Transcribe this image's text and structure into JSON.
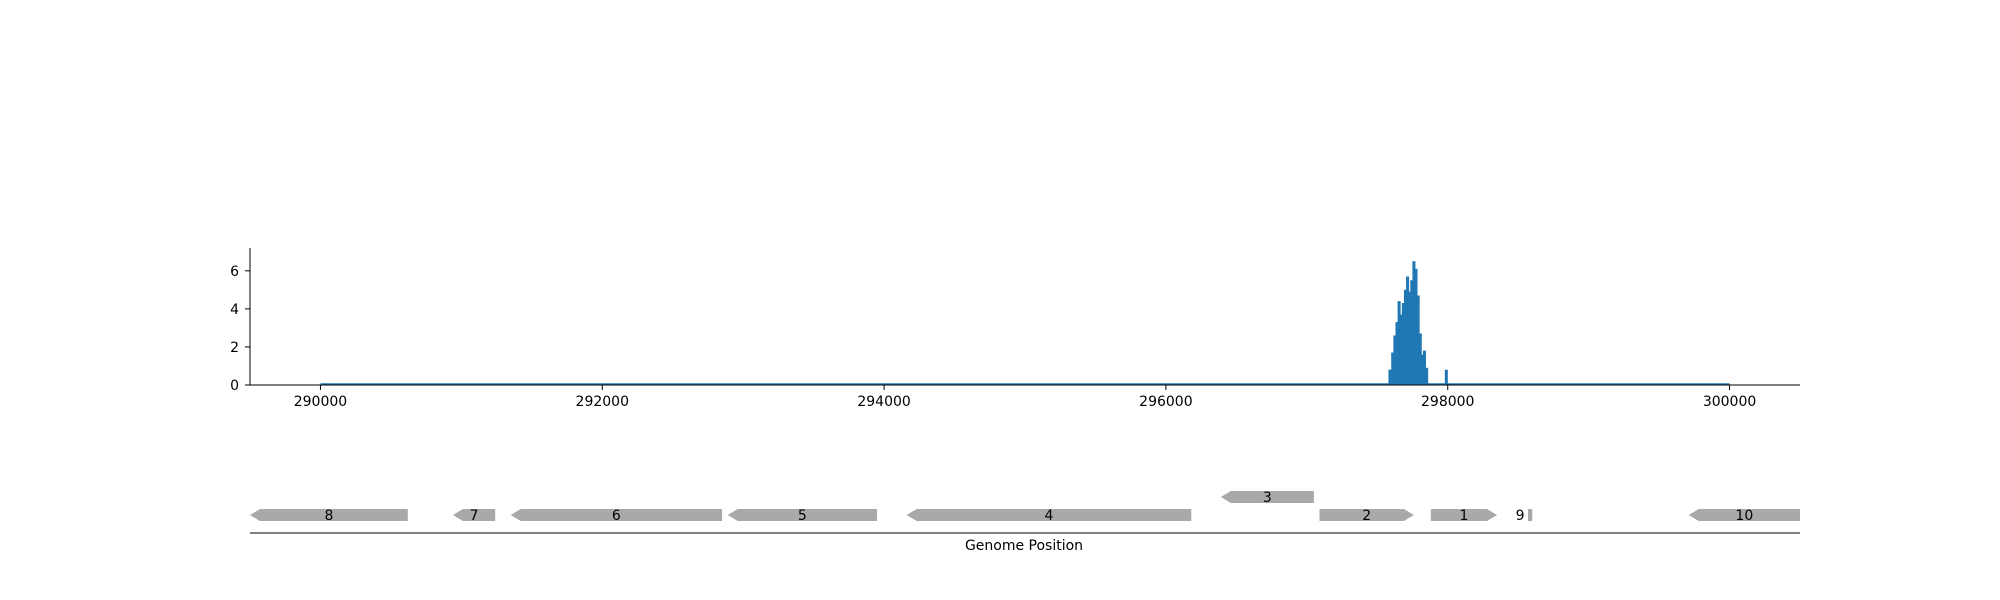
{
  "chart_data": [
    {
      "type": "bar",
      "title": "",
      "xlabel": "",
      "ylabel": "",
      "xlim": [
        289500,
        300500
      ],
      "ylim": [
        0,
        7.2
      ],
      "grid": false,
      "x_ticks": [
        "290000",
        "292000",
        "294000",
        "296000",
        "298000",
        "300000"
      ],
      "y_ticks": [
        "0",
        "2",
        "4",
        "6"
      ],
      "series": [
        {
          "color": "#1f77b4",
          "baseline_range": [
            290000,
            300000
          ],
          "x": [
            297590,
            297610,
            297625,
            297640,
            297655,
            297670,
            297685,
            297700,
            297715,
            297730,
            297745,
            297760,
            297775,
            297790,
            297805,
            297820,
            297835,
            297850,
            297990
          ],
          "values": [
            0.8,
            1.7,
            2.6,
            3.3,
            4.4,
            3.7,
            4.3,
            5.0,
            5.7,
            4.9,
            5.5,
            6.5,
            6.1,
            4.7,
            2.7,
            1.6,
            1.8,
            0.9,
            0.8
          ]
        }
      ]
    },
    {
      "type": "gene-track",
      "xlabel": "Genome Position",
      "genes": [
        {
          "label": "8",
          "start": 289500,
          "end": 290620,
          "strand": "-",
          "row": 0
        },
        {
          "label": "7",
          "start": 290940,
          "end": 291240,
          "strand": "-",
          "row": 0
        },
        {
          "label": "6",
          "start": 291350,
          "end": 292850,
          "strand": "-",
          "row": 0
        },
        {
          "label": "5",
          "start": 292890,
          "end": 293950,
          "strand": "-",
          "row": 0
        },
        {
          "label": "4",
          "start": 294160,
          "end": 296180,
          "strand": "-",
          "row": 0
        },
        {
          "label": "3",
          "start": 296390,
          "end": 297050,
          "strand": "-",
          "row": 1
        },
        {
          "label": "2",
          "start": 297090,
          "end": 297760,
          "strand": "+",
          "row": 0
        },
        {
          "label": "1",
          "start": 297880,
          "end": 298350,
          "strand": "+",
          "row": 0
        },
        {
          "label": "9",
          "start": 298570,
          "end": 298600,
          "strand": "+",
          "row": 0
        },
        {
          "label": "10",
          "start": 299710,
          "end": 300500,
          "strand": "-",
          "row": 0
        }
      ],
      "gene_color": "#a9a9a9"
    }
  ]
}
